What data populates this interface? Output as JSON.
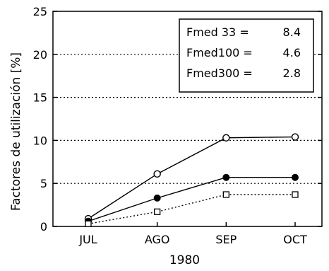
{
  "chart_data": {
    "type": "line",
    "title": "",
    "xlabel": "1980",
    "ylabel": "Factores de utilización [%]",
    "categories": [
      "JUL",
      "AGO",
      "SEP",
      "OCT"
    ],
    "ylim": [
      0,
      25
    ],
    "yticks": [
      "0",
      "5",
      "10",
      "15",
      "20",
      "25"
    ],
    "grid": "horizontal-dotted",
    "legend": "none",
    "series": [
      {
        "marker": "open-circle",
        "line": "solid",
        "values": [
          0.9,
          6.1,
          10.3,
          10.4
        ]
      },
      {
        "marker": "filled-circle",
        "line": "solid",
        "values": [
          0.6,
          3.3,
          5.7,
          5.7
        ]
      },
      {
        "marker": "open-square",
        "line": "dotted",
        "values": [
          0.3,
          1.7,
          3.7,
          3.7
        ]
      }
    ],
    "annotation": {
      "placement": "top-right",
      "rows": [
        {
          "label": "Fmed 33 =",
          "value": "8.4"
        },
        {
          "label": "Fmed100 =",
          "value": "4.6"
        },
        {
          "label": "Fmed300 =",
          "value": "2.8"
        }
      ]
    }
  }
}
